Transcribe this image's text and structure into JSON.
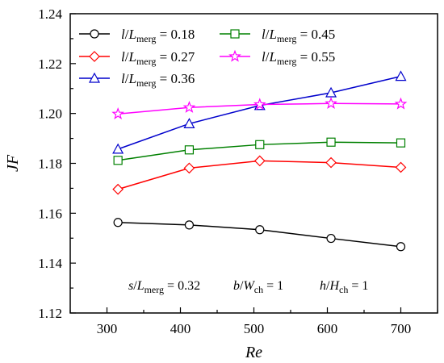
{
  "chart_data": {
    "type": "line",
    "xlabel": "Re",
    "ylabel": "JF",
    "xlim": [
      250,
      750
    ],
    "ylim": [
      1.12,
      1.24
    ],
    "xticks": [
      300,
      400,
      500,
      600,
      700
    ],
    "yticks": [
      1.12,
      1.14,
      1.16,
      1.18,
      1.2,
      1.22,
      1.24
    ],
    "xtick_labels": [
      "300",
      "400",
      "500",
      "600",
      "700"
    ],
    "ytick_labels": [
      "1.12",
      "1.14",
      "1.16",
      "1.18",
      "1.20",
      "1.22",
      "1.24"
    ],
    "grid": false,
    "legend_position": "top-left",
    "x": [
      315,
      412,
      508,
      605,
      700
    ],
    "series": [
      {
        "name": "l/Lmerg = 0.18",
        "ratio": "0.18",
        "color": "#000000",
        "marker": "circle",
        "values": [
          1.1563,
          1.1553,
          1.1534,
          1.1499,
          1.1466
        ]
      },
      {
        "name": "l/Lmerg = 0.27",
        "ratio": "0.27",
        "color": "#ff0000",
        "marker": "diamond",
        "values": [
          1.1696,
          1.1781,
          1.181,
          1.1803,
          1.1784
        ]
      },
      {
        "name": "l/Lmerg = 0.36",
        "ratio": "0.36",
        "color": "#0000cc",
        "marker": "triangle",
        "values": [
          1.1857,
          1.1959,
          1.2032,
          1.2083,
          1.2149
        ]
      },
      {
        "name": "l/Lmerg = 0.45",
        "ratio": "0.45",
        "color": "#008000",
        "marker": "square",
        "values": [
          1.1812,
          1.1854,
          1.1875,
          1.1885,
          1.1882
        ]
      },
      {
        "name": "l/Lmerg = 0.55",
        "ratio": "0.55",
        "color": "#ff00ff",
        "marker": "star",
        "values": [
          1.1998,
          1.2024,
          1.2036,
          1.204,
          1.2038
        ]
      }
    ],
    "legend": {
      "var": "l",
      "base": "L",
      "sub": "merg",
      "eq": " = "
    },
    "annotation": [
      {
        "var": "s",
        "base": "L",
        "sub": "merg",
        "value": "= 0.32"
      },
      {
        "var": "b",
        "base": "W",
        "sub": "ch",
        "value": "= 1"
      },
      {
        "var": "h",
        "base": "H",
        "sub": "ch",
        "value": "= 1"
      }
    ]
  }
}
